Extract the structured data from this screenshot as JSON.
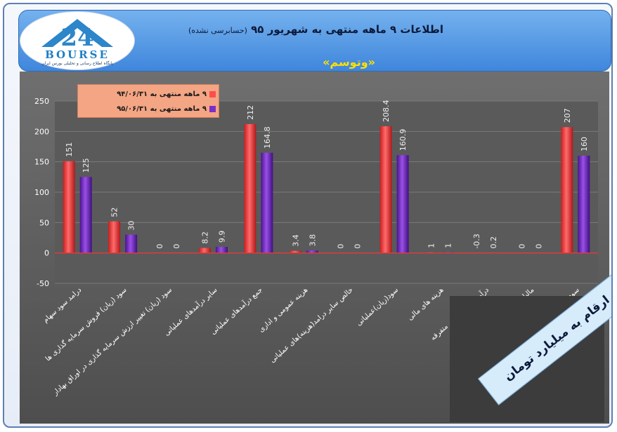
{
  "header": {
    "title": "اطلاعات ۹ ماهه منتهی به شهریور ۹۵",
    "subtitle": "(حسابرسی نشده)",
    "company": "«وتوسم»"
  },
  "logo": {
    "word": "BOURSE",
    "tagline": "پایگاه اطلاع رسانی و تحلیلی بورس ایران"
  },
  "note": "ارقام به میلیارد تومان",
  "colors": {
    "series1": "#ff4d4d",
    "series2": "#7a2fc8",
    "zero_line": "#ff3030"
  },
  "chart_data": {
    "type": "bar",
    "categories": [
      "درامد سود سهام",
      "سود (زیان) فروش سرمایه گذاری ها",
      "سود (زیان) تغییر ارزش سرمایه گذاری در اوراق بهادار",
      "سایر درآمدهای عملیاتی",
      "جمع درآمدهای عملیاتی",
      "هزینه عمومی و اداری",
      "خالص سایر درامد(هزینه)های عملیاتی",
      "سود(زیان)عملیاتی",
      "هزینه های مالی",
      "درآمد (هزینه) های متفرقه",
      "مالیات",
      "سود(زیان) خالص"
    ],
    "series": [
      {
        "name": "۹ ماهه منتهی به ۹۴/۰۶/۳۱",
        "values": [
          151,
          52,
          0,
          8.2,
          212,
          3.4,
          0,
          208.4,
          1,
          -0.3,
          0,
          207
        ]
      },
      {
        "name": "۹ ماهه منتهی به ۹۵/۰۶/۳۱",
        "values": [
          125,
          30,
          0,
          9.9,
          164.8,
          3.8,
          0,
          160.9,
          1,
          0.2,
          0,
          160
        ]
      }
    ],
    "ylim": [
      -50,
      250
    ],
    "yticks": [
      -50,
      0,
      50,
      100,
      150,
      200,
      250
    ],
    "legend_position": "top-left"
  }
}
